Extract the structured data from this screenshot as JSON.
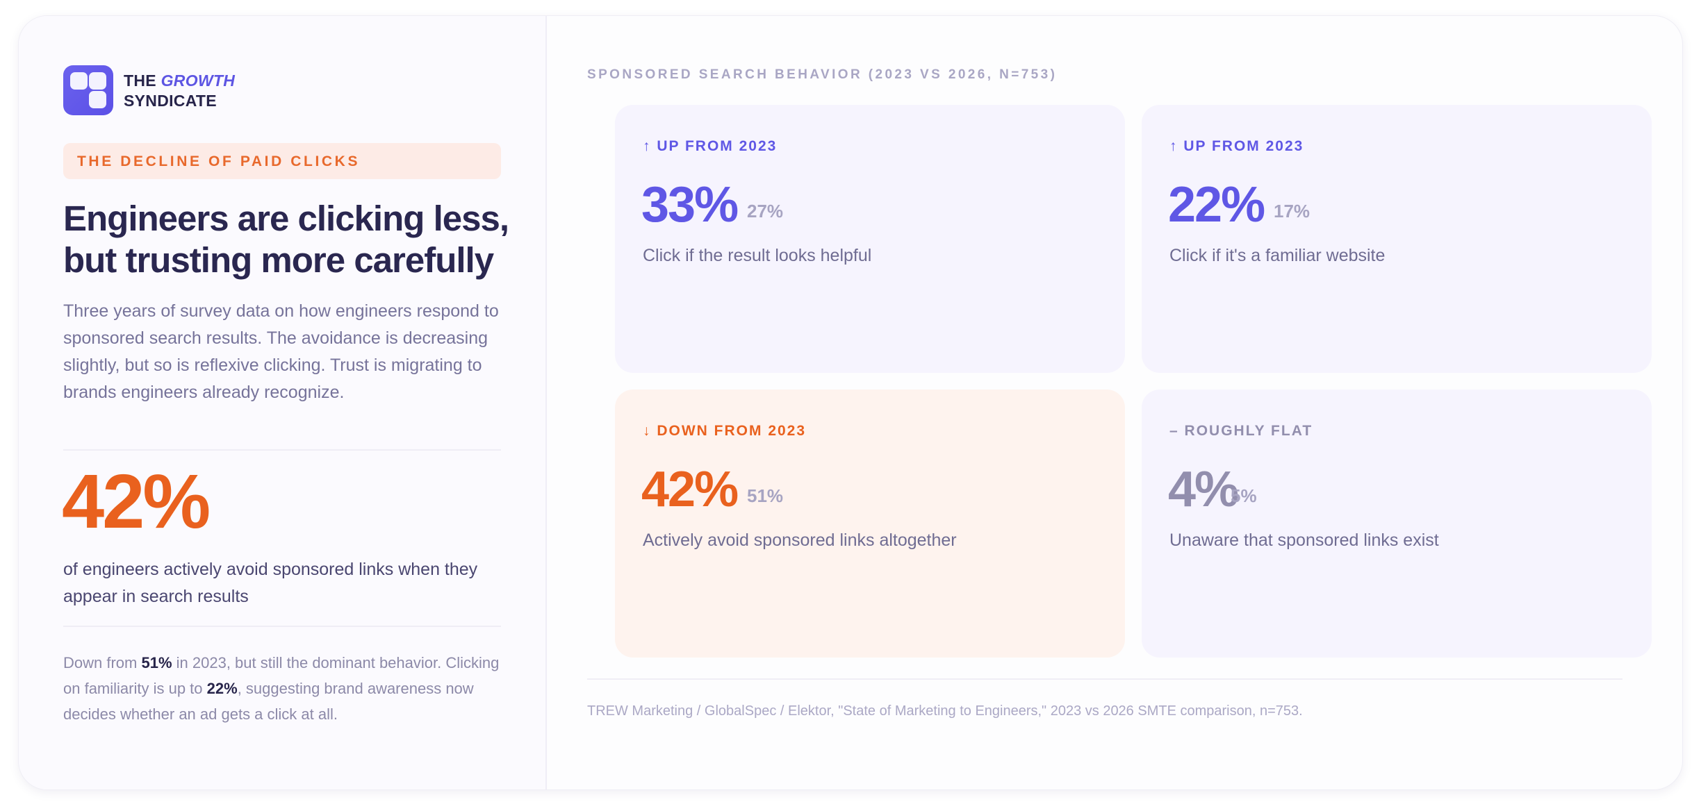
{
  "brand": {
    "line1_prefix": "THE",
    "line1_emphasis": "GROWTH",
    "line2": "SYNDICATE"
  },
  "tag": "THE DECLINE OF PAID CLICKS",
  "headline": {
    "line1": "Engineers are clicking less,",
    "line2": "but trusting more carefully"
  },
  "intro": "Three years of survey data on how engineers respond to sponsored search results. The avoidance is decreasing slightly, but so is reflexive clicking. Trust is migrating to brands engineers already recognize.",
  "hero_stat": {
    "value": "42%",
    "label": "of engineers actively avoid sponsored links when they appear in search results"
  },
  "note": {
    "t1": "Down from ",
    "b1": "51%",
    "t2": " in 2023, but still the dominant behavior. Clicking on familiarity is up to ",
    "b2": "22%",
    "t3": ", suggesting brand awareness now decides whether an ad gets a click at all."
  },
  "section_title": "SPONSORED SEARCH BEHAVIOR (2023 VS 2026, N=753)",
  "tiles": [
    {
      "trend_icon": "↑",
      "trend": "UP FROM 2023",
      "value": "33%",
      "previous": "27%",
      "description": "Click if the result looks helpful",
      "accent": "#5f57e5"
    },
    {
      "trend_icon": "↑",
      "trend": "UP FROM 2023",
      "value": "22%",
      "previous": "17%",
      "description": "Click if it's a familiar website",
      "accent": "#5f57e5"
    },
    {
      "trend_icon": "↓",
      "trend": "DOWN FROM 2023",
      "value": "42%",
      "previous": "51%",
      "description": "Actively avoid sponsored links altogether",
      "accent": "#e9611e"
    },
    {
      "trend_icon": "–",
      "trend": "ROUGHLY FLAT",
      "value": "4%",
      "previous": "5%",
      "description": "Unaware that sponsored links exist",
      "accent": "#928ead"
    }
  ],
  "source": "TREW Marketing / GlobalSpec / Elektor, \"State of Marketing to Engineers,\" 2023 vs 2026 SMTE comparison, n=753."
}
